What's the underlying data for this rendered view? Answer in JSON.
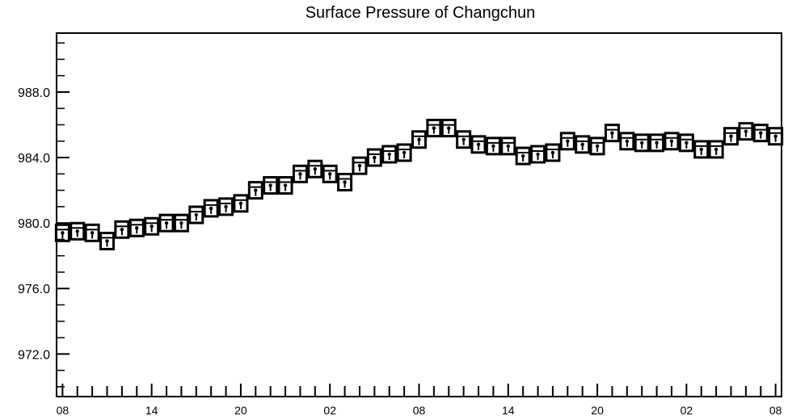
{
  "chart_data": {
    "type": "scatter",
    "title": "Surface Pressure of Changchun",
    "xlabel": "",
    "ylabel": "",
    "ylim": [
      969.4,
      991.6
    ],
    "y_ticks": [
      "972.0",
      "976.0",
      "980.0",
      "984.0",
      "988.0"
    ],
    "y_tick_values": [
      972,
      976,
      980,
      984,
      988
    ],
    "x_tick_labels": [
      "08",
      "14",
      "20",
      "02",
      "08",
      "14",
      "20",
      "02",
      "08"
    ],
    "x_tick_positions": [
      0,
      6,
      12,
      18,
      24,
      30,
      36,
      42,
      48
    ],
    "xlim": [
      -0.4,
      48.4
    ],
    "grid": false,
    "legend": "none",
    "marker": "square box with horizontal line and vertical whisker",
    "series": [
      {
        "x": [
          0,
          1,
          2,
          3,
          4,
          5,
          6,
          7,
          8,
          9,
          10,
          11,
          12,
          13,
          14,
          15,
          16,
          17,
          18,
          19,
          20,
          21,
          22,
          23,
          24,
          25,
          26,
          27,
          28,
          29,
          30,
          31,
          32,
          33,
          34,
          35,
          36,
          37,
          38,
          39,
          40,
          41,
          42,
          43,
          44,
          45,
          46,
          47,
          48
        ],
        "values": [
          979.4,
          979.5,
          979.4,
          978.9,
          979.6,
          979.7,
          979.8,
          980.0,
          980.0,
          980.5,
          980.9,
          981.0,
          981.2,
          982.0,
          982.3,
          982.3,
          983.0,
          983.3,
          983.0,
          982.5,
          983.5,
          984.0,
          984.2,
          984.3,
          985.1,
          985.8,
          985.8,
          985.1,
          984.8,
          984.7,
          984.7,
          984.1,
          984.2,
          984.3,
          985.0,
          984.8,
          984.7,
          985.5,
          985.0,
          984.9,
          984.9,
          985.0,
          984.9,
          984.5,
          984.5,
          985.3,
          985.6,
          985.5,
          985.3
        ],
        "color": "#000000"
      }
    ]
  }
}
